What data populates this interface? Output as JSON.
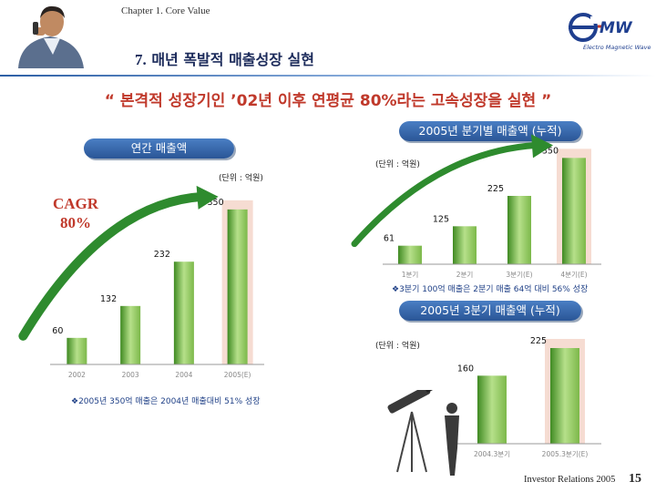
{
  "header": {
    "chapter": "Chapter 1. Core Value",
    "title_number": "7.",
    "title_text": "매년 폭발적 매출성장 실현",
    "logo_caption": "Electro Magnetic Wave"
  },
  "headline": "“ 본격적 성장기인 ’02년 이후 연평균 80%라는 고속성장을 실현 ”",
  "cagr": {
    "label": "CAGR",
    "value": "80%"
  },
  "annual": {
    "pill": "연간 매출액",
    "unit": "(단위 : 억원)",
    "note": "❖2005년 350억 매출은 2004년 매출대비 51% 성장"
  },
  "quarterly": {
    "pill": "2005년 분기별 매출액 (누적)",
    "unit": "(단위 : 억원)",
    "note": "❖3분기 100억 매출은 2분기 매출 64억 대비 56% 성장"
  },
  "q3": {
    "pill": "2005년 3분기 매출액 (누적)",
    "unit": "(단위 : 억원)"
  },
  "footer": {
    "text": "Investor Relations 2005",
    "page": "15"
  },
  "colors": {
    "bar": "#7cb84a",
    "bar_dark": "#3f8a22",
    "arrow": "#2e8b2e",
    "highlight": "#f6dcd2",
    "accent_red": "#c0392b",
    "pill": "#2a5596"
  },
  "chart_data": [
    {
      "type": "bar",
      "title": "연간 매출액",
      "unit": "(단위 : 억원)",
      "categories": [
        "2002",
        "2003",
        "2004",
        "2005(E)"
      ],
      "values": [
        60,
        132,
        232,
        350
      ],
      "ylim": [
        0,
        360
      ],
      "highlight_category": "2005(E)"
    },
    {
      "type": "bar",
      "title": "2005년 분기별 매출액 (누적)",
      "unit": "(단위 : 억원)",
      "categories": [
        "1분기",
        "2분기",
        "3분기(E)",
        "4분기(E)"
      ],
      "values": [
        61,
        125,
        225,
        350
      ],
      "ylim": [
        0,
        360
      ],
      "highlight_category": "4분기(E)"
    },
    {
      "type": "bar",
      "title": "2005년 3분기 매출액 (누적)",
      "unit": "(단위 : 억원)",
      "categories": [
        "2004.3분기",
        "2005.3분기(E)"
      ],
      "values": [
        160,
        225
      ],
      "ylim": [
        0,
        240
      ],
      "highlight_category": "2005.3분기(E)"
    }
  ]
}
